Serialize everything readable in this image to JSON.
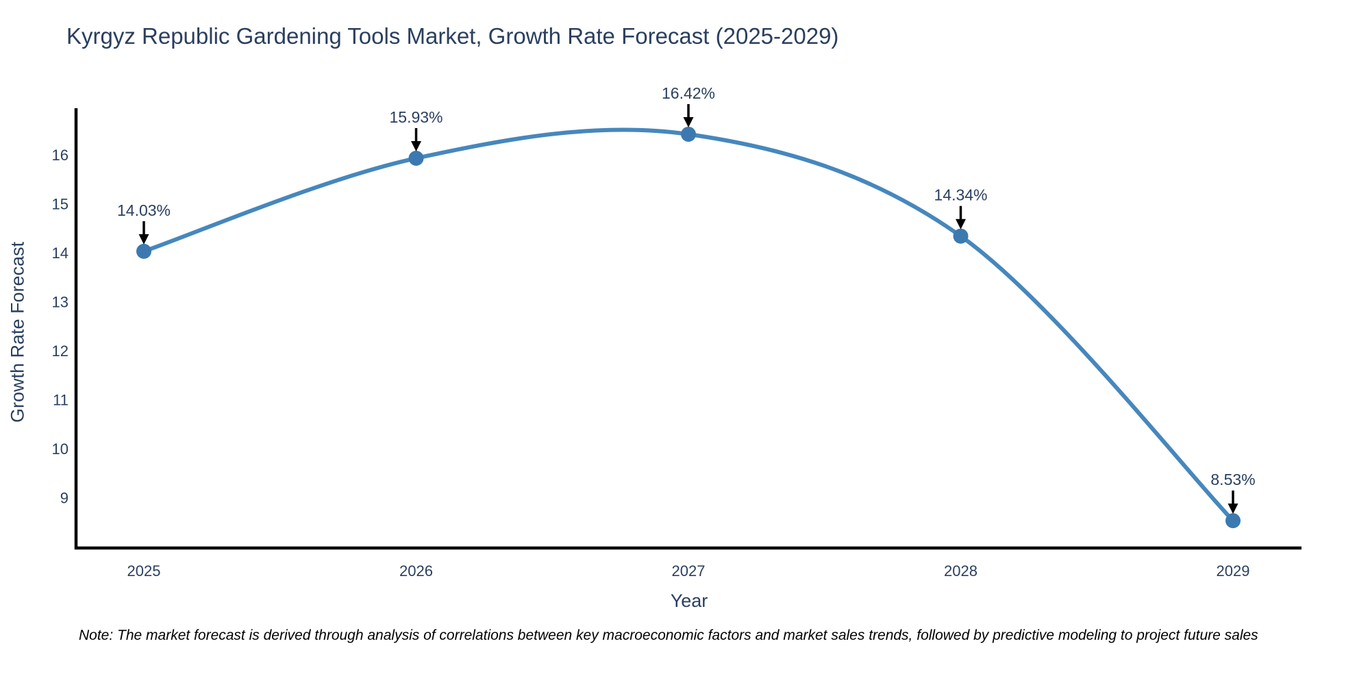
{
  "title": "Kyrgyz Republic Gardening Tools Market, Growth Rate Forecast (2025-2029)",
  "note": "Note: The market forecast is derived through analysis of correlations between key macroeconomic factors and market sales trends, followed by predictive modeling to project future sales",
  "chart_data": {
    "type": "line",
    "title": "Kyrgyz Republic Gardening Tools Market, Growth Rate Forecast (2025-2029)",
    "xlabel": "Year",
    "ylabel": "Growth Rate Forecast",
    "x": [
      2025,
      2026,
      2027,
      2028,
      2029
    ],
    "x_ticks": [
      "2025",
      "2026",
      "2027",
      "2028",
      "2029"
    ],
    "y_ticks": [
      9,
      10,
      11,
      12,
      13,
      14,
      15,
      16
    ],
    "series": [
      {
        "name": "Growth Rate Forecast",
        "values": [
          14.03,
          15.93,
          16.42,
          14.34,
          8.53
        ],
        "point_labels": [
          "14.03%",
          "15.93%",
          "16.42%",
          "14.34%",
          "8.53%"
        ]
      }
    ],
    "line_shape": "spline",
    "markers": true,
    "annotations_have_arrows": true,
    "grid": false,
    "legend": "none",
    "xlim": [
      2024.75,
      2029.25
    ],
    "ylim": [
      8.0,
      16.97
    ],
    "colors": {
      "line": "#4687bd",
      "marker": "#3c79b0",
      "text": "#2a3f5f",
      "axis": "#000000",
      "arrow": "#000000",
      "background": "#ffffff"
    }
  }
}
